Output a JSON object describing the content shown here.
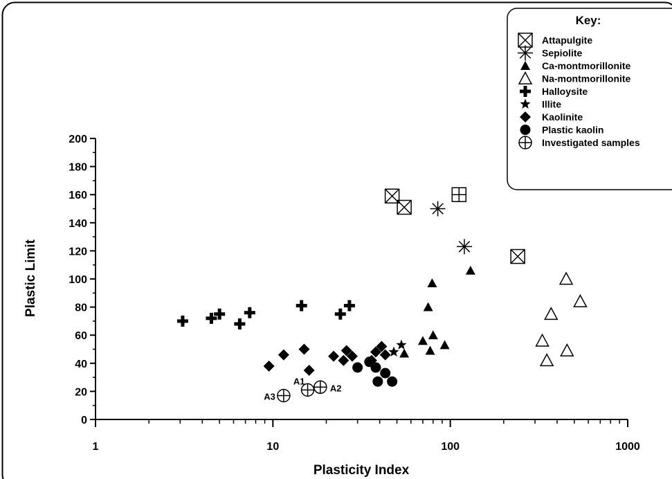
{
  "chart_data": {
    "type": "scatter",
    "xlabel": "Plasticity Index",
    "ylabel": "Plastic Limit",
    "x_scale": "log",
    "xlim": [
      1,
      1000
    ],
    "ylim": [
      0,
      200
    ],
    "x_ticks": [
      {
        "value": 1,
        "label": "1"
      },
      {
        "value": 10,
        "label": "10"
      },
      {
        "value": 100,
        "label": "100"
      },
      {
        "value": 1000,
        "label": "1000"
      }
    ],
    "y_ticks": [
      {
        "value": 0,
        "label": "0"
      },
      {
        "value": 20,
        "label": "20"
      },
      {
        "value": 40,
        "label": "40"
      },
      {
        "value": 60,
        "label": "60"
      },
      {
        "value": 80,
        "label": "80"
      },
      {
        "value": 100,
        "label": "100"
      },
      {
        "value": 120,
        "label": "120"
      },
      {
        "value": 140,
        "label": "140"
      },
      {
        "value": 160,
        "label": "160"
      },
      {
        "value": 180,
        "label": "180"
      },
      {
        "value": 200,
        "label": "200"
      }
    ],
    "grid": false,
    "legend_title": "Key:",
    "legend_position": "top-right",
    "series": [
      {
        "name": "Attapulgite",
        "marker": "square-x",
        "points": [
          [
            47,
            159
          ],
          [
            55,
            151
          ],
          [
            240,
            116
          ]
        ]
      },
      {
        "name": "Sepiolite",
        "marker": "asterisk",
        "points": [
          [
            85,
            150
          ],
          [
            120,
            123
          ]
        ]
      },
      {
        "name": "",
        "marker": "square-plus",
        "points": [
          [
            112,
            160
          ]
        ]
      },
      {
        "name": "Ca-montmorillonite",
        "marker": "triangle-filled",
        "points": [
          [
            55,
            47
          ],
          [
            70,
            56
          ],
          [
            75,
            80
          ],
          [
            77,
            49
          ],
          [
            79,
            97
          ],
          [
            80,
            60
          ],
          [
            93,
            53
          ],
          [
            130,
            106
          ]
        ]
      },
      {
        "name": "Na-montmorillonite",
        "marker": "triangle-open",
        "points": [
          [
            330,
            56
          ],
          [
            350,
            42
          ],
          [
            370,
            75
          ],
          [
            450,
            100
          ],
          [
            455,
            49
          ],
          [
            540,
            84
          ]
        ]
      },
      {
        "name": "Halloysite",
        "marker": "plus",
        "points": [
          [
            3.1,
            70
          ],
          [
            4.5,
            72
          ],
          [
            5.0,
            75
          ],
          [
            6.5,
            68
          ],
          [
            7.4,
            76
          ],
          [
            14.5,
            81
          ],
          [
            24,
            75
          ],
          [
            27,
            81
          ]
        ]
      },
      {
        "name": "Illite",
        "marker": "star",
        "points": [
          [
            48,
            48
          ],
          [
            53,
            53
          ]
        ]
      },
      {
        "name": "Kaolinite",
        "marker": "diamond",
        "points": [
          [
            9.5,
            38
          ],
          [
            11.5,
            46
          ],
          [
            15,
            50
          ],
          [
            16,
            35
          ],
          [
            22,
            45
          ],
          [
            25,
            42
          ],
          [
            26,
            49
          ],
          [
            28,
            45
          ],
          [
            36,
            42
          ],
          [
            38,
            48
          ],
          [
            41,
            52
          ],
          [
            43,
            46
          ]
        ]
      },
      {
        "name": "Plastic kaolin",
        "marker": "circle",
        "points": [
          [
            30,
            37
          ],
          [
            35,
            41
          ],
          [
            38,
            37
          ],
          [
            39,
            27
          ],
          [
            43,
            33
          ],
          [
            47,
            27
          ]
        ]
      },
      {
        "name": "Investigated samples",
        "marker": "circle-plus",
        "points": [
          [
            11.5,
            17,
            "A3"
          ],
          [
            15.7,
            21,
            "A1"
          ],
          [
            18.5,
            23,
            "A2"
          ]
        ]
      }
    ]
  }
}
